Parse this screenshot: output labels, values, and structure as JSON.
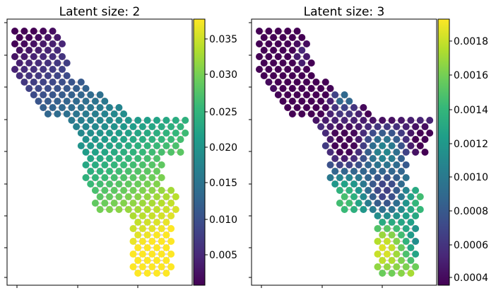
{
  "chart_data": [
    {
      "type": "scatter",
      "title": "Latent size: 2",
      "colorbar": {
        "colormap": "viridis",
        "range": [
          0.0005,
          0.0375
        ],
        "ticks": [
          "0.005",
          "0.010",
          "0.015",
          "0.020",
          "0.025",
          "0.030",
          "0.035"
        ]
      },
      "points_value_range_note": "purple (low) top-left to yellow (high) bottom-right",
      "grid": false
    },
    {
      "type": "scatter",
      "title": "Latent size: 3",
      "colorbar": {
        "colormap": "viridis",
        "range": [
          0.00035,
          0.00193
        ],
        "ticks": [
          "0.0004",
          "0.0006",
          "0.0008",
          "0.0010",
          "0.0012",
          "0.0014",
          "0.0016",
          "0.0018"
        ]
      },
      "grid": false
    }
  ],
  "panels": [
    {
      "title": "Latent size: 2"
    },
    {
      "title": "Latent size: 3"
    }
  ],
  "colors": {
    "edge": "#c7a7a7",
    "axis": "#000000"
  }
}
